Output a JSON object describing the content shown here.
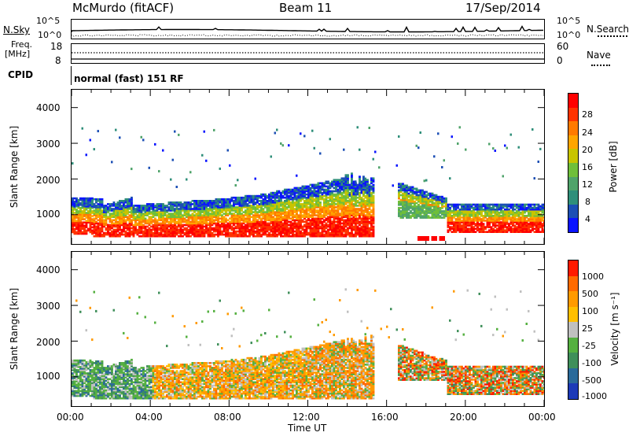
{
  "header": {
    "station": "McMurdo (fitACF)",
    "beam": "Beam 11",
    "date": "17/Sep/2014"
  },
  "top_strip": {
    "left_label": "N.Sky",
    "left_ticks": [
      "10^5",
      "10^0"
    ],
    "right_label": "N.Search",
    "right_ticks": [
      "10^5",
      "10^0"
    ],
    "freq_label_line1": "Freq.",
    "freq_label_line2": "[MHz]",
    "freq_ticks": [
      "18",
      "8"
    ],
    "nave_label": "Nave",
    "nave_ticks": [
      "60",
      "0"
    ],
    "cpid_label": "CPID",
    "cpid_value": "normal (fast) 151 RF"
  },
  "colors": {
    "power_scale": [
      "#0a14ff",
      "#1c4fb5",
      "#2f8f7a",
      "#4fa36a",
      "#6fbf3a",
      "#c8c400",
      "#ffa500",
      "#ff7a00",
      "#ff3300",
      "#ff0000"
    ],
    "velocity_scale": [
      "#1c3ab8",
      "#2a6a9a",
      "#3f8f5a",
      "#55b040",
      "#c0c0c0",
      "#ffbf00",
      "#ff9a00",
      "#ff6a00",
      "#ff1a00"
    ]
  },
  "chart_data": [
    {
      "type": "heatmap",
      "name": "power",
      "ylabel": "Slant Range [km]",
      "y_ticks": [
        "4000",
        "3000",
        "2000",
        "1000"
      ],
      "ylim": [
        180,
        4500
      ],
      "colorbar_label": "Power [dB]",
      "colorbar_ticks": [
        "28",
        "24",
        "20",
        "16",
        "12",
        "8",
        "4"
      ],
      "colorbar_range": [
        0,
        32
      ]
    },
    {
      "type": "heatmap",
      "name": "velocity",
      "ylabel": "Slant Range [km]",
      "y_ticks": [
        "4000",
        "3000",
        "2000",
        "1000"
      ],
      "ylim": [
        180,
        4500
      ],
      "colorbar_label": "Velocity [m s⁻¹]",
      "colorbar_ticks": [
        "1000",
        "500",
        "100",
        "25",
        "-25",
        "-100",
        "-500",
        "-1000"
      ]
    }
  ],
  "x_axis": {
    "label": "Time UT",
    "ticks": [
      "00:00",
      "04:00",
      "08:00",
      "12:00",
      "16:00",
      "20:00",
      "00:00"
    ],
    "range_hours": [
      0,
      24
    ]
  }
}
